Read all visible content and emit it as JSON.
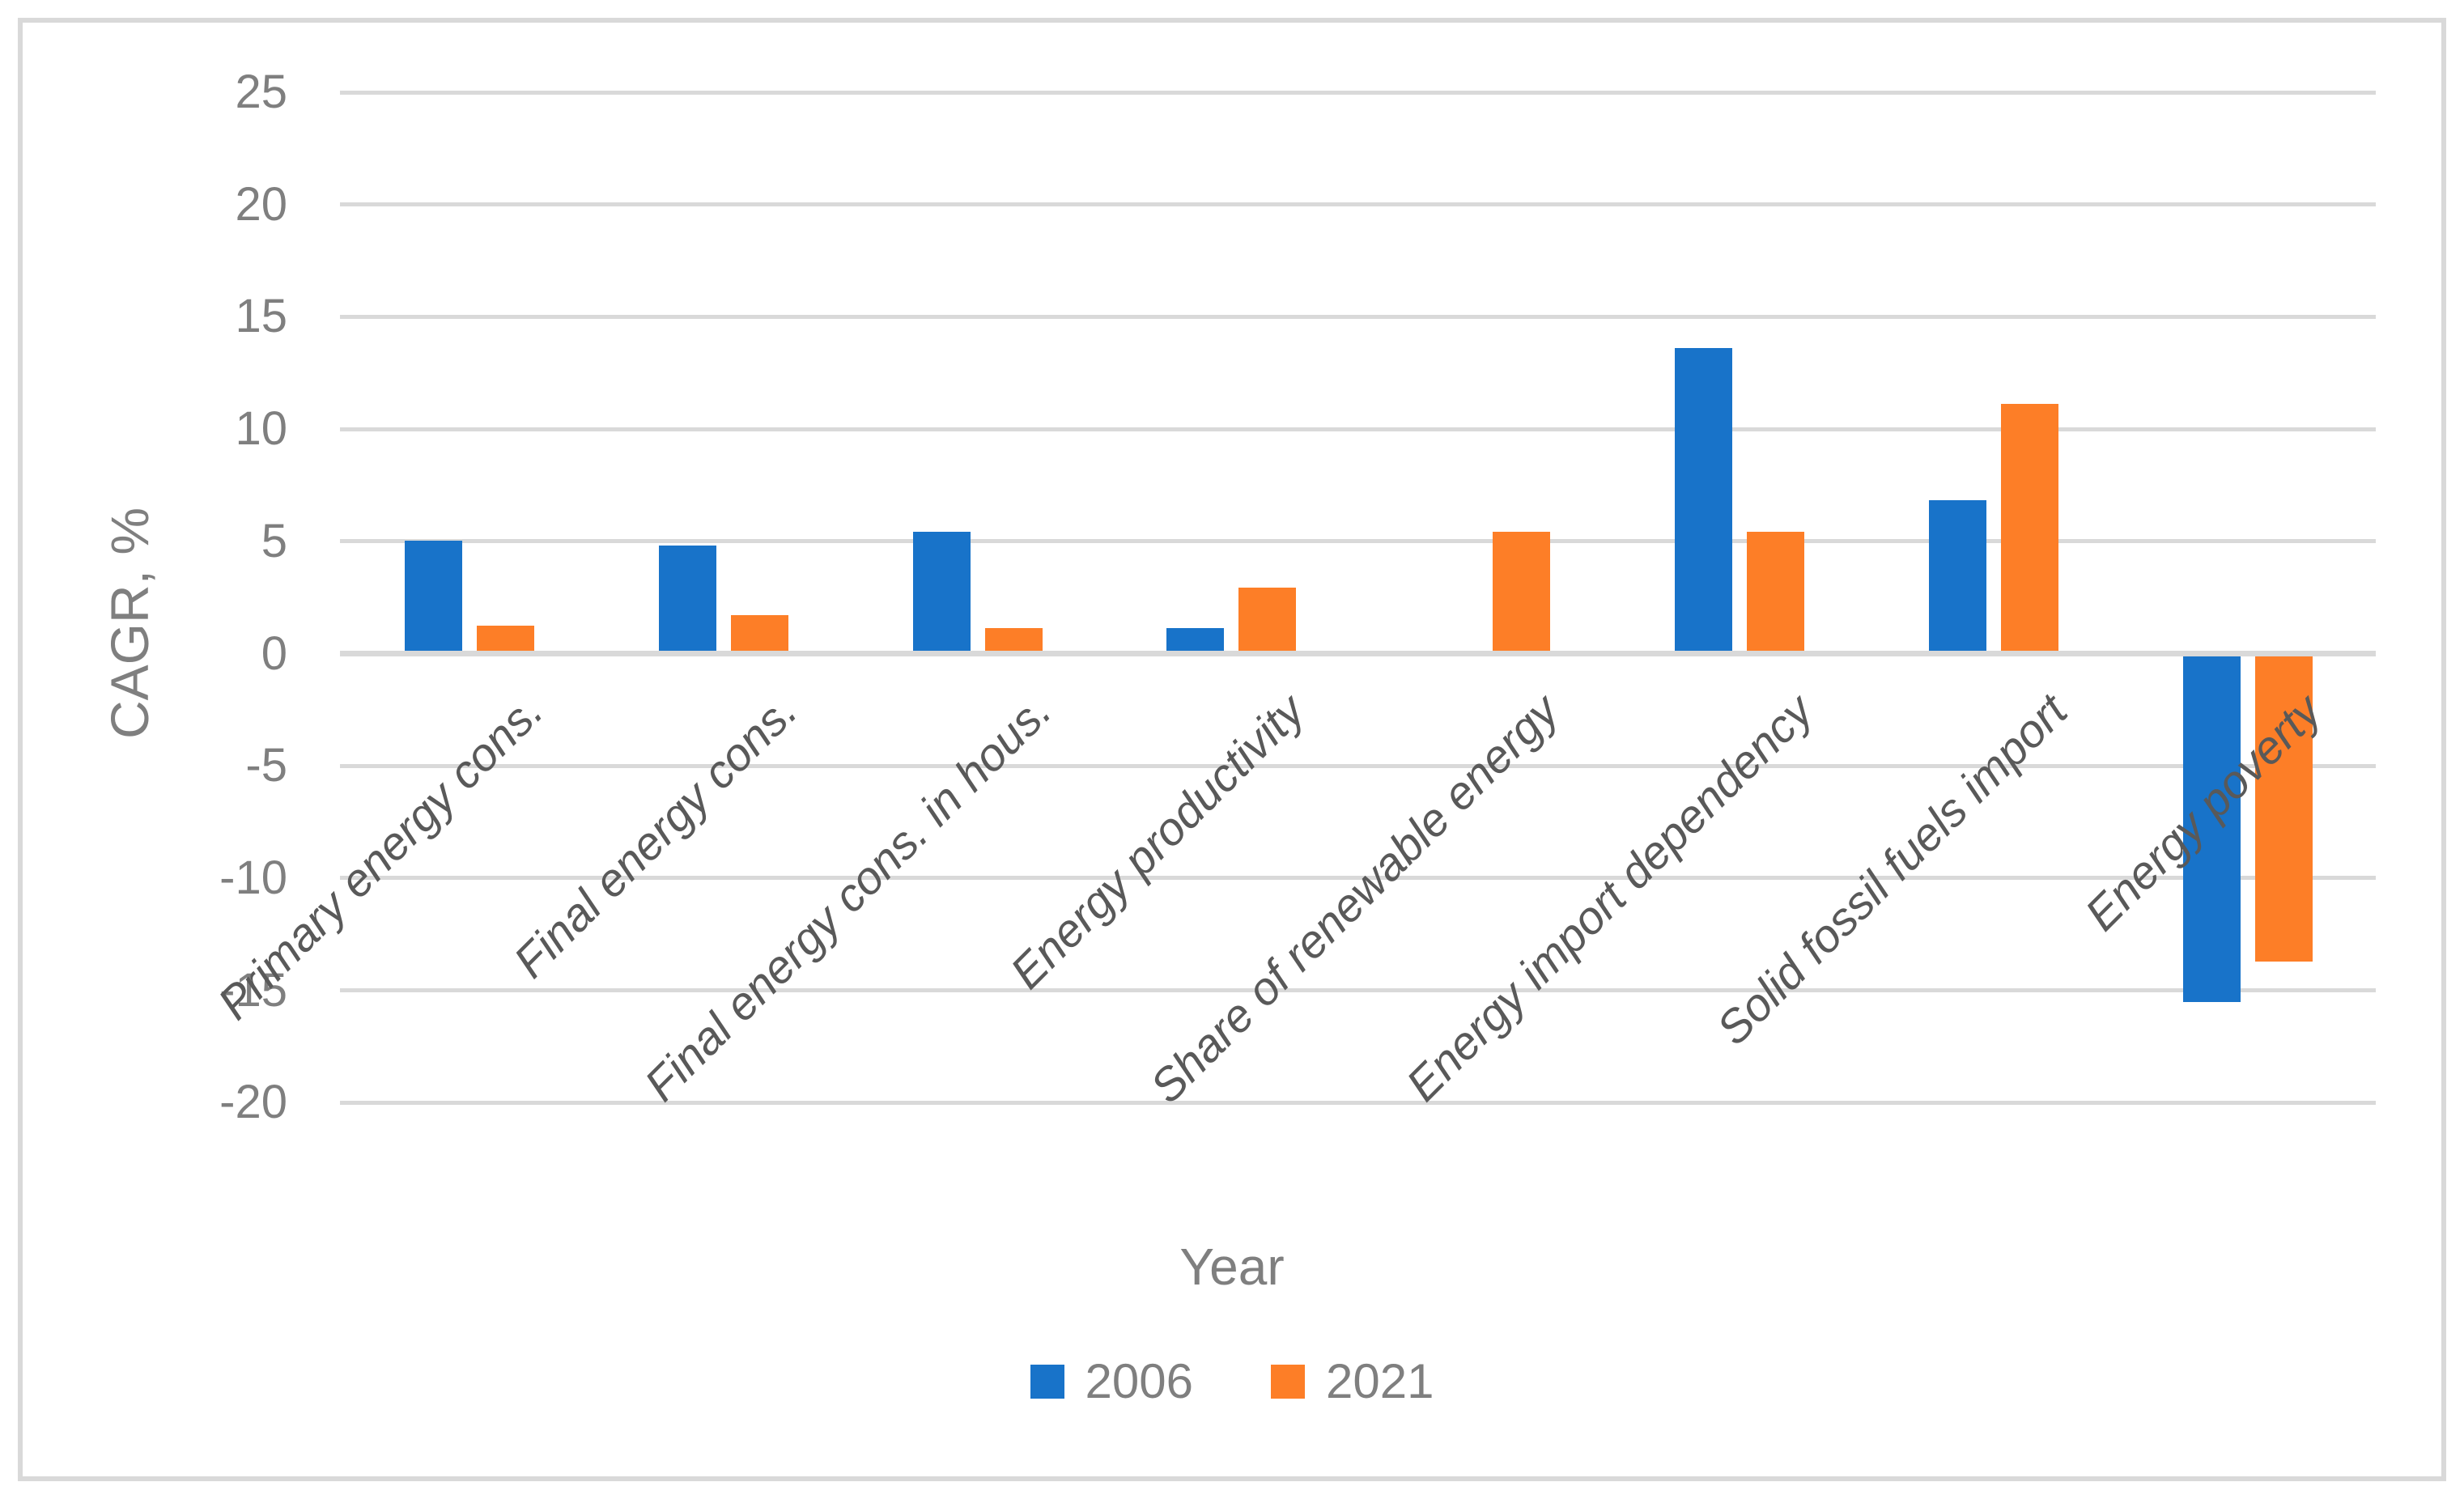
{
  "chart_data": {
    "type": "bar",
    "title": "",
    "xlabel": "Year",
    "ylabel": "CAGR, %",
    "categories": [
      "Primary energy cons.",
      "Final energy cons.",
      "Final energy cons. in hous.",
      "Energy productivity",
      "Share of renewable energy",
      "Energy import dependency",
      "Solid fossil fuels import",
      "Energy poverty"
    ],
    "series": [
      {
        "name": "2006",
        "color": "#1873C9",
        "values": [
          4.9,
          4.7,
          5.3,
          1.0,
          0,
          13.5,
          6.7,
          -15.4
        ]
      },
      {
        "name": "2021",
        "color": "#FD7E27",
        "values": [
          1.1,
          1.6,
          1.0,
          2.8,
          5.3,
          5.3,
          11.0,
          -13.6
        ]
      }
    ],
    "y_ticks": [
      25,
      20,
      15,
      10,
      5,
      0,
      -5,
      -10,
      -15,
      -20
    ],
    "ylim": [
      -20,
      25
    ],
    "grid": true,
    "legend_position": "bottom",
    "grid_color": "#D9D9D9",
    "border_color": "#D9D9D9",
    "tick_text_color": "#7F7F7F",
    "category_text_color": "#595959"
  }
}
